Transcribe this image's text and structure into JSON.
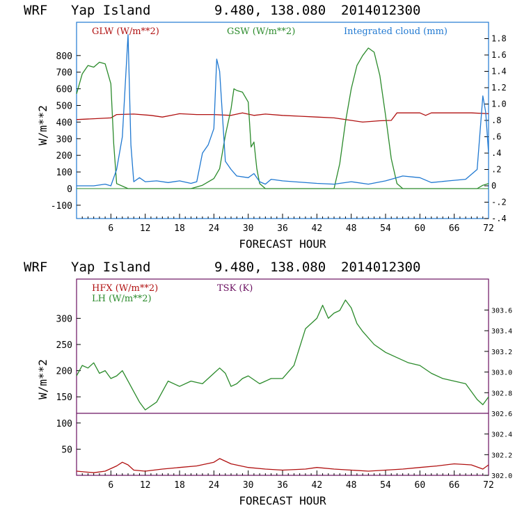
{
  "chart_data": [
    {
      "type": "line",
      "header": {
        "model": "WRF",
        "location": "Yap Island",
        "coords": "9.480, 138.080",
        "date": "2014012300"
      },
      "xlabel": "FORECAST HOUR",
      "ylabel": "W/m**2",
      "xlim": [
        0,
        72
      ],
      "x_ticks": [
        6,
        12,
        18,
        24,
        30,
        36,
        42,
        48,
        54,
        60,
        66,
        72
      ],
      "ylim": [
        -180,
        1000
      ],
      "y_ticks": [
        -100,
        0,
        100,
        200,
        300,
        400,
        500,
        600,
        700,
        800
      ],
      "y2lim": [
        -0.4,
        2.0
      ],
      "y2_ticks": [
        -0.4,
        -0.2,
        0,
        0.2,
        0.4,
        0.6,
        0.8,
        1.0,
        1.2,
        1.4,
        1.6,
        1.8
      ],
      "y2_tick_labels": [
        "-.4",
        "-.2",
        "0",
        ".2",
        ".4",
        ".6",
        ".8",
        "1.0",
        "1.2",
        "1.4",
        "1.6",
        "1.8"
      ],
      "colors": {
        "glw": "#b01010",
        "gsw": "#2a8a2a",
        "cloud": "#1f78d1",
        "zero": "#2a8a2a"
      },
      "series": [
        {
          "name": "GLW (W/m**2)",
          "axis": "left",
          "color": "#b01010",
          "points": [
            [
              0,
              415
            ],
            [
              3,
              420
            ],
            [
              6,
              425
            ],
            [
              7,
              445
            ],
            [
              10,
              448
            ],
            [
              13,
              440
            ],
            [
              15,
              430
            ],
            [
              18,
              450
            ],
            [
              21,
              445
            ],
            [
              24,
              445
            ],
            [
              27,
              440
            ],
            [
              29,
              455
            ],
            [
              31,
              440
            ],
            [
              33,
              448
            ],
            [
              36,
              440
            ],
            [
              39,
              435
            ],
            [
              42,
              430
            ],
            [
              45,
              425
            ],
            [
              48,
              410
            ],
            [
              50,
              400
            ],
            [
              53,
              408
            ],
            [
              55,
              410
            ],
            [
              56,
              455
            ],
            [
              60,
              455
            ],
            [
              61,
              440
            ],
            [
              62,
              455
            ],
            [
              66,
              455
            ],
            [
              69,
              455
            ],
            [
              72,
              450
            ]
          ]
        },
        {
          "name": "GSW (W/m**2)",
          "axis": "left",
          "color": "#2a8a2a",
          "points": [
            [
              0,
              570
            ],
            [
              1,
              690
            ],
            [
              2,
              740
            ],
            [
              3,
              730
            ],
            [
              4,
              760
            ],
            [
              5,
              750
            ],
            [
              6,
              630
            ],
            [
              6.5,
              270
            ],
            [
              7,
              30
            ],
            [
              9,
              0
            ],
            [
              12,
              0
            ],
            [
              20,
              0
            ],
            [
              22,
              20
            ],
            [
              24,
              60
            ],
            [
              25,
              120
            ],
            [
              26,
              320
            ],
            [
              27,
              480
            ],
            [
              27.5,
              600
            ],
            [
              28,
              590
            ],
            [
              29,
              580
            ],
            [
              30,
              520
            ],
            [
              30.5,
              250
            ],
            [
              31,
              280
            ],
            [
              31.5,
              120
            ],
            [
              32,
              30
            ],
            [
              33,
              0
            ],
            [
              45,
              0
            ],
            [
              46,
              150
            ],
            [
              47,
              400
            ],
            [
              48,
              600
            ],
            [
              49,
              740
            ],
            [
              50,
              800
            ],
            [
              51,
              845
            ],
            [
              52,
              820
            ],
            [
              53,
              680
            ],
            [
              54,
              440
            ],
            [
              55,
              180
            ],
            [
              56,
              30
            ],
            [
              57,
              0
            ],
            [
              70,
              0
            ],
            [
              71,
              20
            ],
            [
              72,
              30
            ]
          ]
        },
        {
          "name": "Integrated cloud (mm)",
          "axis": "right",
          "color": "#1f78d1",
          "points": [
            [
              0,
              0.0
            ],
            [
              3,
              0.0
            ],
            [
              5,
              0.02
            ],
            [
              6,
              0.0
            ],
            [
              7,
              0.2
            ],
            [
              8,
              0.6
            ],
            [
              9,
              1.85
            ],
            [
              9.5,
              0.5
            ],
            [
              10,
              0.05
            ],
            [
              11,
              0.1
            ],
            [
              12,
              0.05
            ],
            [
              14,
              0.06
            ],
            [
              16,
              0.04
            ],
            [
              18,
              0.06
            ],
            [
              20,
              0.03
            ],
            [
              21,
              0.05
            ],
            [
              22,
              0.4
            ],
            [
              23,
              0.5
            ],
            [
              24,
              0.7
            ],
            [
              24.5,
              1.55
            ],
            [
              25,
              1.4
            ],
            [
              26,
              0.3
            ],
            [
              27,
              0.2
            ],
            [
              28,
              0.12
            ],
            [
              30,
              0.1
            ],
            [
              31,
              0.15
            ],
            [
              32,
              0.05
            ],
            [
              33,
              0.02
            ],
            [
              34,
              0.08
            ],
            [
              36,
              0.06
            ],
            [
              38,
              0.05
            ],
            [
              42,
              0.03
            ],
            [
              45,
              0.02
            ],
            [
              48,
              0.05
            ],
            [
              51,
              0.02
            ],
            [
              54,
              0.06
            ],
            [
              57,
              0.12
            ],
            [
              60,
              0.1
            ],
            [
              62,
              0.04
            ],
            [
              65,
              0.06
            ],
            [
              68,
              0.08
            ],
            [
              70,
              0.2
            ],
            [
              71,
              1.1
            ],
            [
              71.5,
              0.9
            ],
            [
              72,
              0.4
            ]
          ]
        }
      ],
      "legend": {
        "glw": "GLW (W/m**2)",
        "gsw": "GSW (W/m**2)",
        "cloud": "Integrated cloud (mm)"
      }
    },
    {
      "type": "line",
      "header": {
        "model": "WRF",
        "location": "Yap Island",
        "coords": "9.480, 138.080",
        "date": "2014012300"
      },
      "xlabel": "FORECAST HOUR",
      "ylabel": "W/m**2",
      "xlim": [
        0,
        72
      ],
      "x_ticks": [
        6,
        12,
        18,
        24,
        30,
        36,
        42,
        48,
        54,
        60,
        66,
        72
      ],
      "ylim": [
        0,
        375
      ],
      "y_ticks": [
        50,
        100,
        150,
        200,
        250,
        300
      ],
      "y2lim": [
        302.0,
        303.9
      ],
      "y2_ticks": [
        302.0,
        302.2,
        302.4,
        302.6,
        302.8,
        303.0,
        303.2,
        303.4,
        303.6
      ],
      "y2_tick_labels": [
        "302.0",
        "302.2",
        "302.4",
        "302.6",
        "302.8",
        "303.0",
        "303.2",
        "303.4",
        "303.6"
      ],
      "colors": {
        "hfx": "#b01010",
        "lh": "#2a8a2a",
        "tsk": "#6a1060"
      },
      "series": [
        {
          "name": "HFX (W/m**2)",
          "axis": "left",
          "color": "#b01010",
          "points": [
            [
              0,
              8
            ],
            [
              3,
              5
            ],
            [
              5,
              8
            ],
            [
              7,
              18
            ],
            [
              8,
              25
            ],
            [
              9,
              20
            ],
            [
              10,
              10
            ],
            [
              12,
              8
            ],
            [
              15,
              12
            ],
            [
              18,
              15
            ],
            [
              21,
              18
            ],
            [
              24,
              25
            ],
            [
              25,
              32
            ],
            [
              27,
              22
            ],
            [
              30,
              15
            ],
            [
              33,
              12
            ],
            [
              36,
              10
            ],
            [
              40,
              12
            ],
            [
              42,
              15
            ],
            [
              45,
              12
            ],
            [
              48,
              10
            ],
            [
              51,
              8
            ],
            [
              54,
              10
            ],
            [
              57,
              12
            ],
            [
              60,
              15
            ],
            [
              63,
              18
            ],
            [
              66,
              22
            ],
            [
              69,
              20
            ],
            [
              71,
              12
            ],
            [
              72,
              20
            ]
          ]
        },
        {
          "name": "LH (W/m**2)",
          "axis": "left",
          "color": "#2a8a2a",
          "points": [
            [
              0,
              190
            ],
            [
              1,
              210
            ],
            [
              2,
              205
            ],
            [
              3,
              215
            ],
            [
              4,
              195
            ],
            [
              5,
              200
            ],
            [
              6,
              185
            ],
            [
              7,
              190
            ],
            [
              8,
              200
            ],
            [
              9,
              180
            ],
            [
              10,
              160
            ],
            [
              11,
              140
            ],
            [
              12,
              125
            ],
            [
              14,
              140
            ],
            [
              15,
              160
            ],
            [
              16,
              180
            ],
            [
              18,
              170
            ],
            [
              20,
              180
            ],
            [
              22,
              175
            ],
            [
              24,
              195
            ],
            [
              25,
              205
            ],
            [
              26,
              195
            ],
            [
              27,
              170
            ],
            [
              28,
              175
            ],
            [
              29,
              185
            ],
            [
              30,
              190
            ],
            [
              32,
              175
            ],
            [
              34,
              185
            ],
            [
              36,
              185
            ],
            [
              38,
              210
            ],
            [
              40,
              280
            ],
            [
              42,
              300
            ],
            [
              43,
              325
            ],
            [
              44,
              300
            ],
            [
              45,
              310
            ],
            [
              46,
              315
            ],
            [
              47,
              335
            ],
            [
              48,
              320
            ],
            [
              49,
              290
            ],
            [
              50,
              275
            ],
            [
              52,
              250
            ],
            [
              54,
              235
            ],
            [
              56,
              225
            ],
            [
              58,
              215
            ],
            [
              60,
              210
            ],
            [
              62,
              195
            ],
            [
              64,
              185
            ],
            [
              66,
              180
            ],
            [
              68,
              175
            ],
            [
              70,
              145
            ],
            [
              71,
              135
            ],
            [
              72,
              150
            ]
          ]
        },
        {
          "name": "TSK (K)",
          "axis": "right",
          "color": "#6a1060",
          "points": [
            [
              0,
              302.6
            ],
            [
              72,
              302.6
            ]
          ]
        }
      ],
      "legend": {
        "hfx": "HFX (W/m**2)",
        "lh": "LH (W/m**2)",
        "tsk": "TSK (K)"
      }
    }
  ]
}
